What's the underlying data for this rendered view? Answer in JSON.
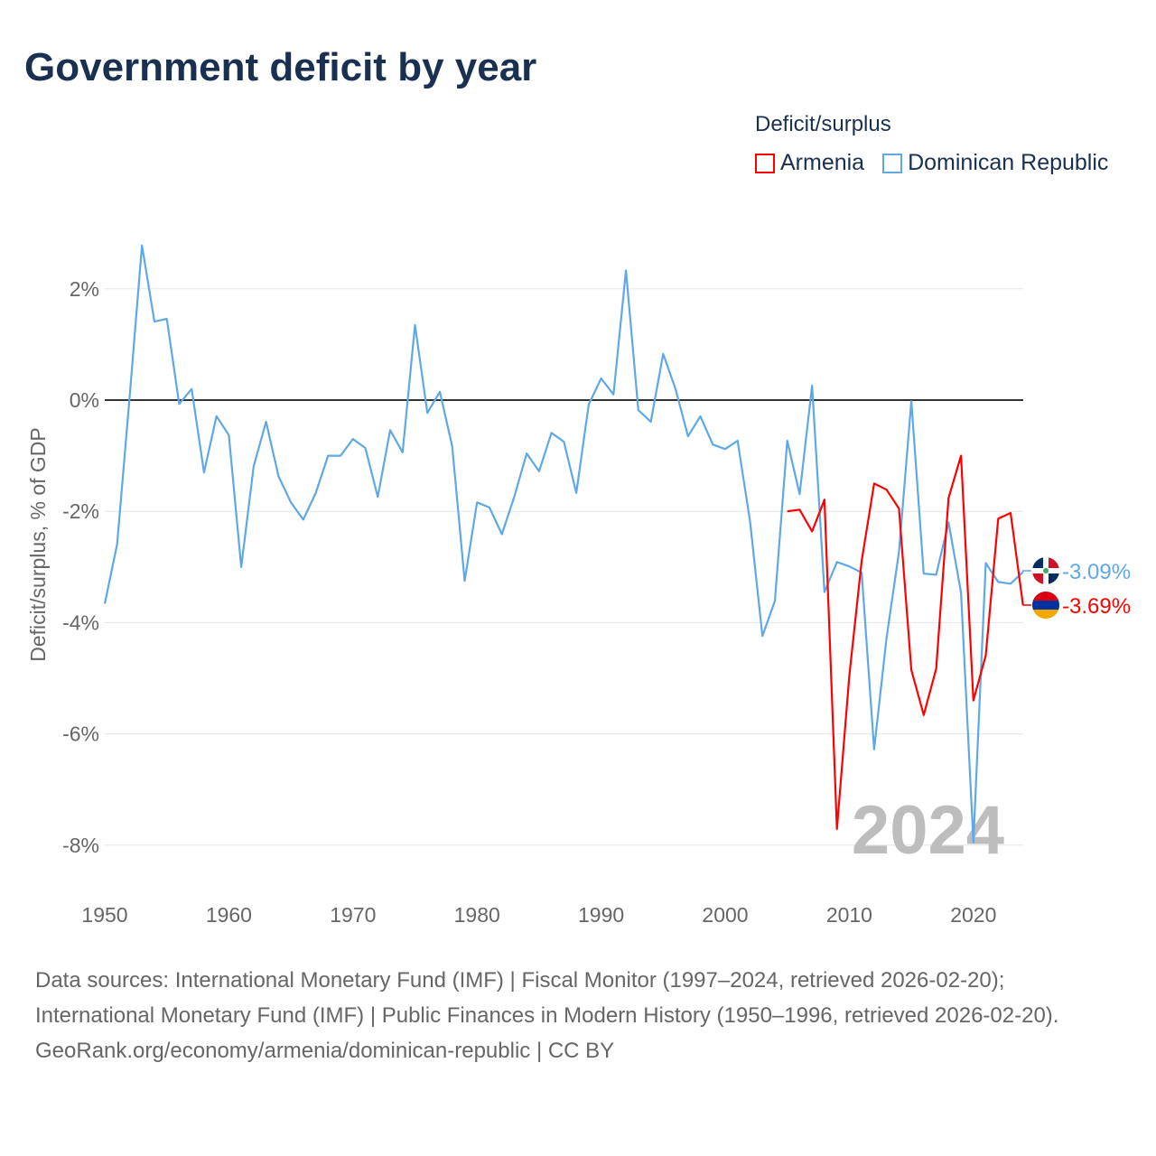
{
  "title": "Government deficit by year",
  "legend": {
    "title": "Deficit/surplus",
    "items": [
      "Armenia",
      "Dominican Republic"
    ]
  },
  "footer": {
    "sources": "Data sources: International Monetary Fund (IMF) | Fiscal Monitor (1997–2024, retrieved 2026-02-20); International Monetary Fund (IMF) | Public Finances in Modern History (1950–1996, retrieved 2026-02-20).",
    "credit": "GeoRank.org/economy/armenia/dominican-republic | CC BY"
  },
  "chart_data": {
    "type": "line",
    "title": "Government deficit by year",
    "ylabel": "Deficit/surplus, % of GDP",
    "xlabel": "",
    "xlim": [
      1950,
      2024
    ],
    "ylim": [
      -9,
      3
    ],
    "x_ticks": [
      1950,
      1960,
      1970,
      1980,
      1990,
      2000,
      2010,
      2020
    ],
    "y_ticks": [
      2,
      0,
      -2,
      -4,
      -6,
      -8
    ],
    "y_tick_labels": [
      "2%",
      "0%",
      "-2%",
      "-4%",
      "-6%",
      "-8%"
    ],
    "watermark": "2024",
    "grid": true,
    "legend_position": "top-right",
    "series": [
      {
        "name": "Armenia",
        "color": "#ff0000",
        "start_year": 2005,
        "end_label": "-3.69%",
        "values": [
          -2.0,
          -1.97,
          -2.36,
          -1.79,
          -7.71,
          -4.96,
          -2.89,
          -1.5,
          -1.61,
          -1.95,
          -4.85,
          -5.66,
          -4.83,
          -1.76,
          -1.0,
          -5.4,
          -4.59,
          -2.13,
          -2.03,
          -3.69
        ]
      },
      {
        "name": "Dominican Republic",
        "color": "#5fa8e8",
        "start_year": 1950,
        "end_label": "-3.09%",
        "values": [
          -3.66,
          -2.59,
          0.05,
          2.78,
          1.41,
          1.46,
          -0.07,
          0.2,
          -1.3,
          -0.29,
          -0.63,
          -3.0,
          -1.19,
          -0.39,
          -1.37,
          -1.84,
          -2.15,
          -1.67,
          -1.0,
          -1.0,
          -0.7,
          -0.86,
          -1.74,
          -0.54,
          -0.94,
          1.35,
          -0.23,
          0.15,
          -0.83,
          -3.25,
          -1.84,
          -1.93,
          -2.41,
          -1.74,
          -0.96,
          -1.28,
          -0.59,
          -0.75,
          -1.67,
          -0.08,
          0.39,
          0.1,
          2.33,
          -0.18,
          -0.39,
          0.83,
          0.2,
          -0.65,
          -0.29,
          -0.8,
          -0.88,
          -0.73,
          -2.18,
          -4.24,
          -3.61,
          -0.73,
          -1.69,
          0.26,
          -3.45,
          -2.91,
          -2.99,
          -3.1,
          -6.28,
          -4.28,
          -2.73,
          -0.02,
          -3.12,
          -3.14,
          -2.2,
          -3.46,
          -7.95,
          -2.93,
          -3.27,
          -3.3,
          -3.09
        ]
      }
    ]
  }
}
